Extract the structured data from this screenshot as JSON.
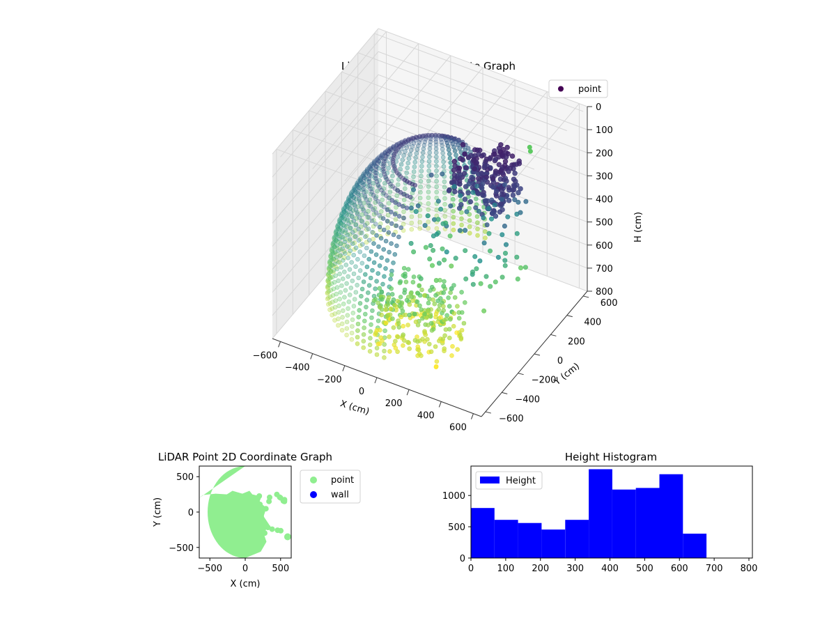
{
  "chart_data": [
    {
      "type": "scatter3d",
      "title": "LiDAR Point 3D Coordinate Graph",
      "xlabel": "X (cm)",
      "ylabel": "Y (cm)",
      "zlabel": "H (cm)",
      "xlim": [
        -650,
        650
      ],
      "ylim": [
        -650,
        650
      ],
      "zlim": [
        0,
        800
      ],
      "z_inverted": true,
      "xticks": [
        -600,
        -400,
        -200,
        0,
        200,
        400,
        600
      ],
      "yticks": [
        -600,
        -400,
        -200,
        0,
        200,
        400,
        600
      ],
      "zticks": [
        0,
        100,
        200,
        300,
        400,
        500,
        600,
        700,
        800
      ],
      "colormap": "viridis",
      "legend": {
        "position": "top-right",
        "entries": [
          "point"
        ]
      },
      "grid": true,
      "series": [
        {
          "name": "point",
          "description_colors": [
            "#440154",
            "#3b528b",
            "#21918c",
            "#5ec962",
            "#fde725"
          ]
        }
      ],
      "outliers": [
        {
          "x": 560,
          "y": 130,
          "h": 0
        },
        {
          "x": 540,
          "y": 160,
          "h": 0
        }
      ]
    },
    {
      "type": "scatter",
      "title": "LiDAR Point 2D Coordinate Graph",
      "xlabel": "X (cm)",
      "ylabel": "Y (cm)",
      "xlim": [
        -650,
        650
      ],
      "ylim": [
        -650,
        650
      ],
      "xticks": [
        -500,
        0,
        500
      ],
      "yticks": [
        -500,
        0,
        500
      ],
      "legend": {
        "position": "outside-right",
        "entries": [
          "point",
          "wall"
        ]
      },
      "series": [
        {
          "name": "point",
          "color": "#90ee90"
        },
        {
          "name": "wall",
          "color": "#0000ff"
        }
      ],
      "outliers": [
        {
          "x": 600,
          "y": -350
        }
      ]
    },
    {
      "type": "histogram",
      "title": "Height Histogram",
      "xlim": [
        0,
        810
      ],
      "ylim": [
        0,
        1470
      ],
      "xticks": [
        0,
        100,
        200,
        300,
        400,
        500,
        600,
        700,
        800
      ],
      "yticks": [
        0,
        500,
        1000
      ],
      "legend": {
        "position": "top-left",
        "entries": [
          "Height"
        ]
      },
      "series": [
        {
          "name": "Height",
          "color": "#0000ff"
        }
      ],
      "bin_edges": [
        0,
        67.8,
        135.6,
        203.4,
        271.2,
        339,
        406.8,
        474.6,
        542.4,
        610.2,
        678
      ],
      "counts": [
        800,
        610,
        560,
        455,
        610,
        1420,
        1095,
        1120,
        1340,
        390
      ]
    }
  ]
}
